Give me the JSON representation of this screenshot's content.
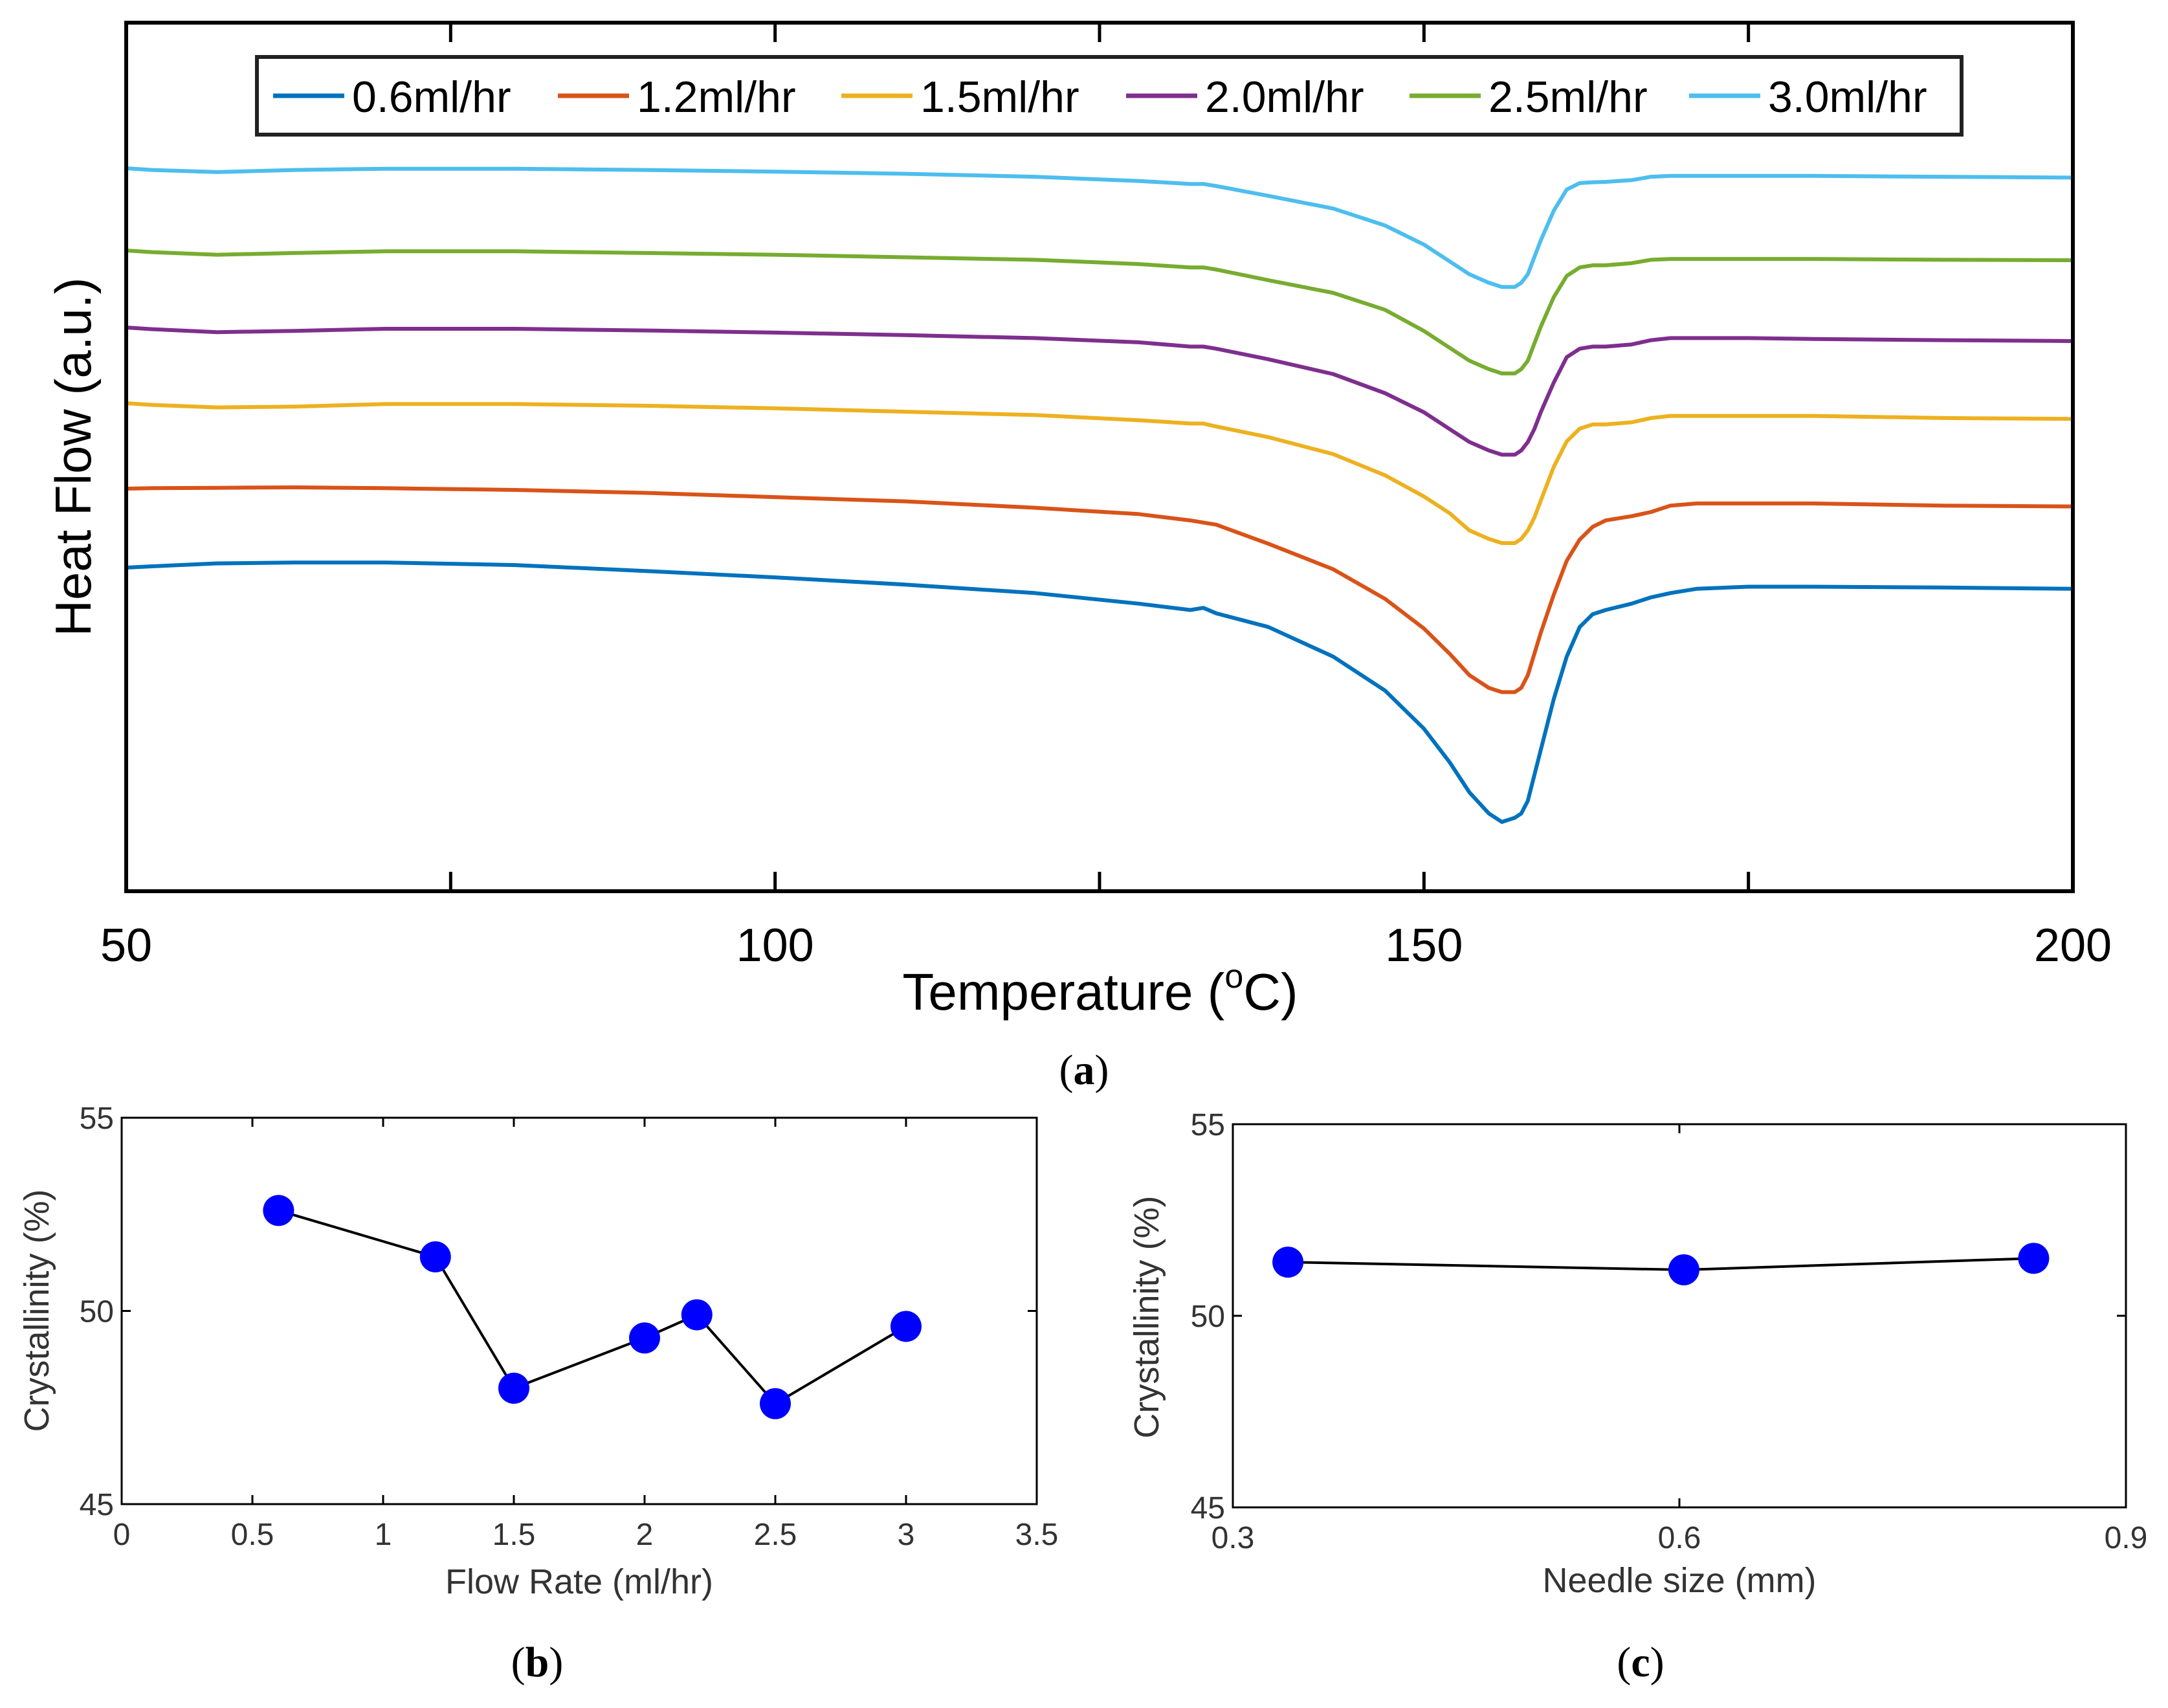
{
  "chart_data": [
    {
      "panel": "(a)",
      "type": "line",
      "xlabel": "Temperature (",
      "xlabel_sup": "o",
      "xlabel_end": "C)",
      "ylabel": "Heat Flow (a.u.)",
      "xlim": [
        50,
        200
      ],
      "xticks": [
        50,
        100,
        150,
        200
      ],
      "yticks_shown": false,
      "legend_position": "top, horizontal",
      "series": [
        {
          "name": "0.6ml/hr",
          "color": "#0072BD",
          "baseline": 0,
          "peak_depth": 1.0,
          "x": [
            50,
            52,
            57,
            63,
            70,
            80,
            90,
            100,
            110,
            120,
            128,
            132,
            133,
            134,
            138,
            143,
            147,
            150,
            152,
            153.5,
            155,
            156,
            157,
            157.5,
            158,
            158.5,
            159,
            160,
            161,
            162,
            163,
            164,
            166,
            167.5,
            169,
            171,
            175,
            180,
            190,
            200
          ],
          "y": [
            0.0,
            0.003,
            0.01,
            0.012,
            0.012,
            0.006,
            -0.008,
            -0.023,
            -0.04,
            -0.06,
            -0.085,
            -0.1,
            -0.095,
            -0.108,
            -0.14,
            -0.21,
            -0.29,
            -0.38,
            -0.46,
            -0.53,
            -0.58,
            -0.6,
            -0.59,
            -0.58,
            -0.55,
            -0.49,
            -0.43,
            -0.31,
            -0.21,
            -0.14,
            -0.11,
            -0.1,
            -0.085,
            -0.07,
            -0.06,
            -0.05,
            -0.045,
            -0.045,
            -0.047,
            -0.05
          ]
        },
        {
          "name": "1.2ml/hr",
          "color": "#D95319",
          "baseline": 1,
          "peak_depth": 1.0,
          "x": [
            50,
            52,
            57,
            63,
            70,
            80,
            90,
            100,
            110,
            120,
            128,
            132,
            133,
            134,
            138,
            143,
            147,
            150,
            152,
            153.5,
            155,
            156,
            157,
            157.5,
            158,
            158.5,
            159,
            160,
            161,
            162,
            163,
            164,
            166,
            167.5,
            169,
            171,
            175,
            180,
            190,
            200
          ],
          "y": [
            0.0,
            0.001,
            0.002,
            0.003,
            0.001,
            -0.003,
            -0.01,
            -0.02,
            -0.03,
            -0.045,
            -0.06,
            -0.075,
            -0.08,
            -0.085,
            -0.13,
            -0.19,
            -0.26,
            -0.33,
            -0.39,
            -0.44,
            -0.47,
            -0.48,
            -0.48,
            -0.47,
            -0.44,
            -0.39,
            -0.34,
            -0.25,
            -0.17,
            -0.12,
            -0.09,
            -0.075,
            -0.065,
            -0.055,
            -0.04,
            -0.035,
            -0.035,
            -0.035,
            -0.04,
            -0.042
          ]
        },
        {
          "name": "1.5ml/hr",
          "color": "#EDB120",
          "baseline": 2,
          "peak_depth": 1.0,
          "x": [
            50,
            52,
            57,
            63,
            70,
            80,
            90,
            100,
            110,
            120,
            128,
            132,
            133,
            134,
            138,
            143,
            147,
            150,
            152,
            153.5,
            155,
            156,
            157,
            157.5,
            158,
            158.5,
            159,
            160,
            161,
            162,
            163,
            164,
            166,
            167.5,
            169,
            171,
            175,
            180,
            190,
            200
          ],
          "y": [
            0.0,
            -0.004,
            -0.01,
            -0.008,
            -0.002,
            -0.002,
            -0.006,
            -0.012,
            -0.02,
            -0.028,
            -0.04,
            -0.048,
            -0.048,
            -0.055,
            -0.08,
            -0.12,
            -0.17,
            -0.22,
            -0.26,
            -0.3,
            -0.32,
            -0.33,
            -0.33,
            -0.32,
            -0.3,
            -0.27,
            -0.23,
            -0.15,
            -0.09,
            -0.06,
            -0.05,
            -0.05,
            -0.045,
            -0.035,
            -0.03,
            -0.03,
            -0.03,
            -0.03,
            -0.035,
            -0.037
          ]
        },
        {
          "name": "2.0ml/hr",
          "color": "#7E2F8E",
          "baseline": 3,
          "peak_depth": 1.0,
          "x": [
            50,
            52,
            57,
            63,
            70,
            80,
            90,
            100,
            110,
            120,
            128,
            132,
            133,
            134,
            138,
            143,
            147,
            150,
            152,
            153.5,
            155,
            156,
            157,
            157.5,
            158,
            158.5,
            159,
            160,
            161,
            162,
            163,
            164,
            166,
            167.5,
            169,
            171,
            175,
            180,
            190,
            200
          ],
          "y": [
            0.0,
            -0.004,
            -0.011,
            -0.008,
            -0.003,
            -0.003,
            -0.007,
            -0.012,
            -0.018,
            -0.025,
            -0.035,
            -0.045,
            -0.045,
            -0.05,
            -0.075,
            -0.11,
            -0.155,
            -0.2,
            -0.24,
            -0.27,
            -0.29,
            -0.3,
            -0.3,
            -0.29,
            -0.27,
            -0.24,
            -0.2,
            -0.13,
            -0.07,
            -0.05,
            -0.045,
            -0.045,
            -0.04,
            -0.03,
            -0.025,
            -0.025,
            -0.025,
            -0.027,
            -0.03,
            -0.032
          ]
        },
        {
          "name": "2.5ml/hr",
          "color": "#77AC30",
          "baseline": 4,
          "peak_depth": 1.0,
          "x": [
            50,
            52,
            57,
            63,
            70,
            80,
            90,
            100,
            110,
            120,
            128,
            132,
            133,
            134,
            138,
            143,
            147,
            150,
            152,
            153.5,
            155,
            156,
            157,
            157.5,
            158,
            158.5,
            159,
            160,
            161,
            162,
            163,
            164,
            166,
            167.5,
            169,
            171,
            175,
            180,
            190,
            200
          ],
          "y": [
            0.0,
            -0.004,
            -0.01,
            -0.006,
            -0.002,
            -0.002,
            -0.006,
            -0.01,
            -0.016,
            -0.022,
            -0.032,
            -0.04,
            -0.04,
            -0.045,
            -0.07,
            -0.1,
            -0.14,
            -0.19,
            -0.23,
            -0.26,
            -0.28,
            -0.29,
            -0.29,
            -0.28,
            -0.26,
            -0.22,
            -0.18,
            -0.11,
            -0.06,
            -0.04,
            -0.035,
            -0.035,
            -0.03,
            -0.022,
            -0.02,
            -0.02,
            -0.02,
            -0.02,
            -0.022,
            -0.023
          ]
        },
        {
          "name": "3.0ml/hr",
          "color": "#4DBEEE",
          "baseline": 5,
          "peak_depth": 1.0,
          "x": [
            50,
            52,
            57,
            63,
            70,
            80,
            90,
            100,
            110,
            120,
            128,
            132,
            133,
            134,
            138,
            143,
            147,
            150,
            152,
            153.5,
            155,
            156,
            157,
            157.5,
            158,
            158.5,
            159,
            160,
            161,
            162,
            163,
            164,
            166,
            167.5,
            169,
            171,
            175,
            180,
            190,
            200
          ],
          "y": [
            0.0,
            -0.004,
            -0.009,
            -0.004,
            -0.001,
            -0.001,
            -0.004,
            -0.008,
            -0.013,
            -0.02,
            -0.03,
            -0.037,
            -0.037,
            -0.042,
            -0.065,
            -0.095,
            -0.135,
            -0.18,
            -0.22,
            -0.25,
            -0.27,
            -0.28,
            -0.28,
            -0.27,
            -0.25,
            -0.21,
            -0.17,
            -0.1,
            -0.05,
            -0.035,
            -0.033,
            -0.032,
            -0.028,
            -0.02,
            -0.018,
            -0.018,
            -0.018,
            -0.018,
            -0.02,
            -0.022
          ]
        }
      ]
    },
    {
      "panel": "(b)",
      "type": "scatter",
      "xlabel": "Flow Rate (ml/hr)",
      "ylabel": "Crystallinity (%)",
      "xlim": [
        0,
        3.5
      ],
      "ylim": [
        45,
        55
      ],
      "xticks": [
        0,
        0.5,
        1,
        1.5,
        2,
        2.5,
        3,
        3.5
      ],
      "xtick_labels": [
        "0",
        "0.5",
        "1",
        "1.5",
        "2",
        "2.5",
        "3",
        "3.5"
      ],
      "yticks": [
        45,
        50,
        55
      ],
      "ytick_labels": [
        "45",
        "50",
        "55"
      ],
      "x": [
        0.6,
        1.2,
        1.5,
        2.0,
        2.2,
        2.5,
        3.0
      ],
      "y": [
        52.6,
        51.4,
        48.0,
        49.3,
        49.9,
        47.6,
        49.6
      ],
      "marker_color": "#0000FF",
      "line_color": "#000000"
    },
    {
      "panel": "(c)",
      "type": "scatter",
      "xlabel": "Needle size (mm)",
      "ylabel": "Crystallinity (%)",
      "xlim": [
        0.3,
        0.9
      ],
      "ylim": [
        45,
        55
      ],
      "xticks": [
        0.3,
        0.6,
        0.9
      ],
      "xtick_labels": [
        "0.3",
        "0.6",
        "0.9"
      ],
      "yticks": [
        45,
        50,
        55
      ],
      "ytick_labels": [
        "45",
        "50",
        "55"
      ],
      "x": [
        0.337,
        0.603,
        0.838
      ],
      "y": [
        51.4,
        51.2,
        51.5
      ],
      "marker_color": "#0000FF",
      "line_color": "#000000"
    }
  ],
  "panel_labels": {
    "a": {
      "open": "(",
      "letter": "a",
      "close": ")"
    },
    "b": {
      "open": "(",
      "letter": "b",
      "close": ")"
    },
    "c": {
      "open": "(",
      "letter": "c",
      "close": ")"
    }
  }
}
